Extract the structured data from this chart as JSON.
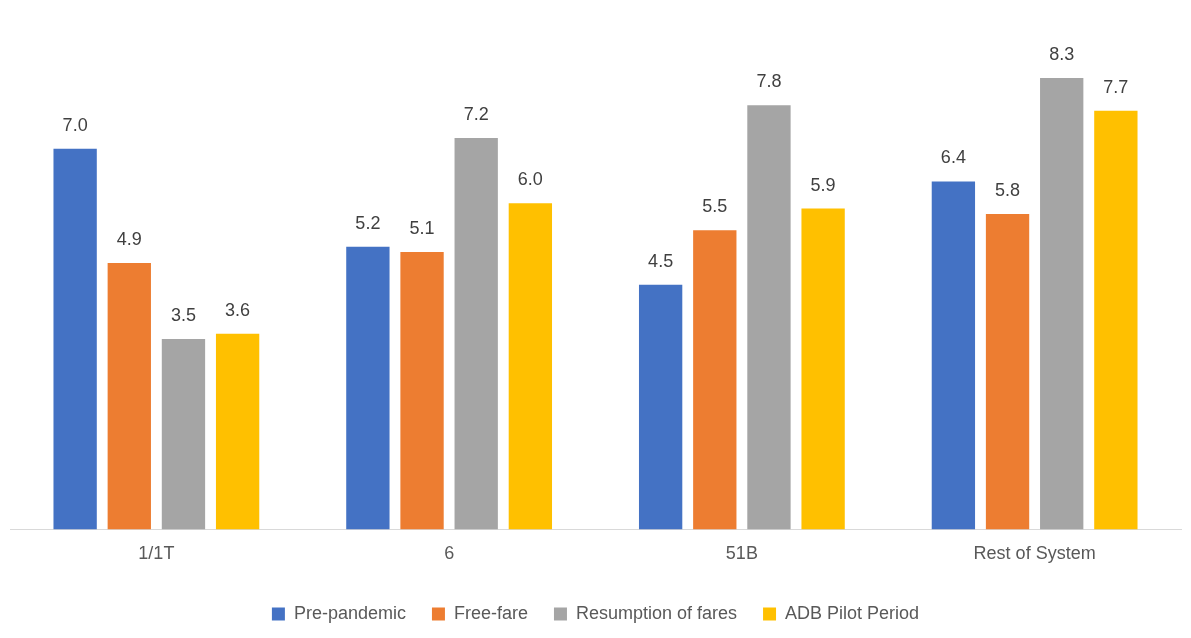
{
  "chart_data": {
    "type": "bar",
    "categories": [
      "1/1T",
      "6",
      "51B",
      "Rest of System"
    ],
    "series": [
      {
        "name": "Pre-pandemic",
        "color": "#4472c4",
        "values": [
          7.0,
          5.2,
          4.5,
          6.4
        ],
        "value_labels": [
          "7.0",
          "5.2",
          "4.5",
          "6.4"
        ]
      },
      {
        "name": "Free-fare",
        "color": "#ed7d31",
        "values": [
          4.9,
          5.1,
          5.5,
          5.8
        ],
        "value_labels": [
          "4.9",
          "5.1",
          "5.5",
          "5.8"
        ]
      },
      {
        "name": "Resumption of fares",
        "color": "#a5a5a5",
        "values": [
          3.5,
          7.2,
          7.8,
          8.3
        ],
        "value_labels": [
          "3.5",
          "7.2",
          "7.8",
          "8.3"
        ]
      },
      {
        "name": "ADB Pilot Period",
        "color": "#ffc000",
        "values": [
          3.6,
          6.0,
          5.9,
          7.7
        ],
        "value_labels": [
          "3.6",
          "6.0",
          "5.9",
          "7.7"
        ]
      }
    ],
    "legend": "bottom"
  }
}
